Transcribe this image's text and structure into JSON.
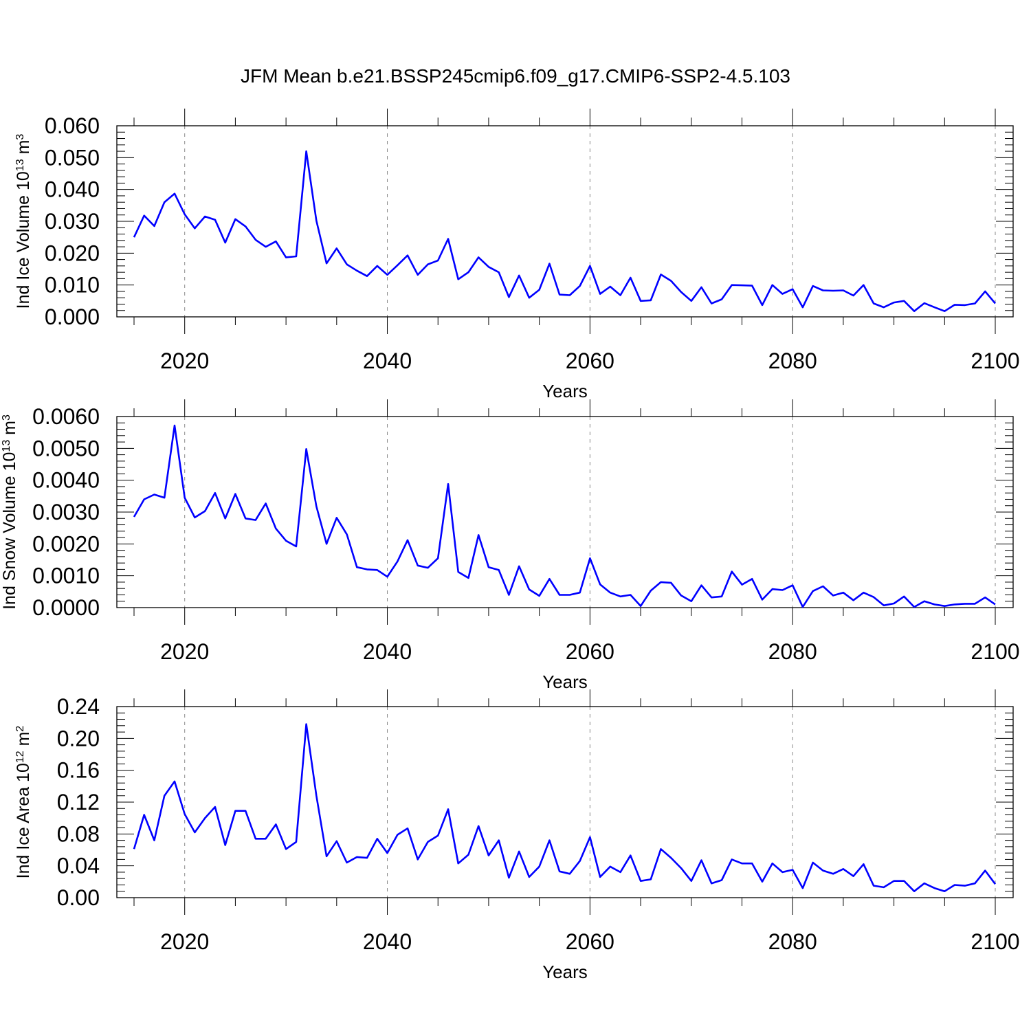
{
  "figure": {
    "title": "JFM Mean b.e21.BSSP245cmip6.f09_g17.CMIP6-SSP2-4.5.103",
    "line_color": "#0000ff"
  },
  "chart_data": [
    {
      "type": "line",
      "xlabel": "Years",
      "ylabel": {
        "base": "Ind Ice Volume 10",
        "exp": "13",
        "unit": " m",
        "unit_exp": "3"
      },
      "xlim": [
        2015,
        2100
      ],
      "ylim": [
        0,
        0.06
      ],
      "x_ticks": [
        "2020",
        "2040",
        "2060",
        "2080",
        "2100"
      ],
      "y_ticks": [
        "0.000",
        "0.010",
        "0.020",
        "0.030",
        "0.040",
        "0.050",
        "0.060"
      ],
      "grid": "dashed vertical at major x ticks",
      "x_start": 2015,
      "series": [
        {
          "name": "Ind Ice Volume",
          "values": [
            0.025,
            0.0318,
            0.0285,
            0.036,
            0.0387,
            0.0322,
            0.0278,
            0.0315,
            0.0305,
            0.0233,
            0.0307,
            0.0284,
            0.0242,
            0.022,
            0.0237,
            0.0187,
            0.019,
            0.052,
            0.0302,
            0.0168,
            0.0215,
            0.0165,
            0.0145,
            0.0128,
            0.016,
            0.0132,
            0.0162,
            0.0193,
            0.0132,
            0.0165,
            0.0177,
            0.0245,
            0.0118,
            0.014,
            0.0187,
            0.0157,
            0.014,
            0.0062,
            0.013,
            0.006,
            0.0085,
            0.0167,
            0.007,
            0.0068,
            0.0097,
            0.016,
            0.0072,
            0.0095,
            0.0068,
            0.0123,
            0.005,
            0.0052,
            0.0133,
            0.0113,
            0.0078,
            0.005,
            0.0093,
            0.0042,
            0.0055,
            0.01,
            0.0099,
            0.0098,
            0.0037,
            0.01,
            0.0072,
            0.0087,
            0.003,
            0.0097,
            0.0083,
            0.0082,
            0.0083,
            0.0067,
            0.01,
            0.0042,
            0.003,
            0.0045,
            0.005,
            0.0018,
            0.0043,
            0.003,
            0.0018,
            0.0038,
            0.0037,
            0.0042,
            0.008,
            0.0042
          ]
        }
      ]
    },
    {
      "type": "line",
      "xlabel": "Years",
      "ylabel": {
        "base": "Ind Snow Volume 10",
        "exp": "13",
        "unit": " m",
        "unit_exp": "3"
      },
      "xlim": [
        2015,
        2100
      ],
      "ylim": [
        0,
        0.006
      ],
      "x_ticks": [
        "2020",
        "2040",
        "2060",
        "2080",
        "2100"
      ],
      "y_ticks": [
        "0.0000",
        "0.0010",
        "0.0020",
        "0.0030",
        "0.0040",
        "0.0050",
        "0.0060"
      ],
      "grid": "dashed vertical at major x ticks",
      "x_start": 2015,
      "series": [
        {
          "name": "Ind Snow Volume",
          "values": [
            0.00285,
            0.0034,
            0.00355,
            0.00345,
            0.00572,
            0.00345,
            0.00283,
            0.00303,
            0.0036,
            0.0028,
            0.00357,
            0.0028,
            0.00275,
            0.00327,
            0.00248,
            0.0021,
            0.00192,
            0.00498,
            0.00318,
            0.002,
            0.00282,
            0.0023,
            0.00127,
            0.0012,
            0.00118,
            0.00097,
            0.00145,
            0.00212,
            0.00132,
            0.00125,
            0.00155,
            0.00388,
            0.00112,
            0.00093,
            0.00228,
            0.00127,
            0.00118,
            0.0004,
            0.0013,
            0.00057,
            0.00037,
            0.0009,
            0.0004,
            0.0004,
            0.00047,
            0.00155,
            0.00073,
            0.00047,
            0.00035,
            0.0004,
            5e-05,
            0.00053,
            0.0008,
            0.00078,
            0.00038,
            0.0002,
            0.0007,
            0.00032,
            0.00035,
            0.00113,
            0.00072,
            0.0009,
            0.00025,
            0.00058,
            0.00055,
            0.0007,
            2e-05,
            0.00052,
            0.00067,
            0.00038,
            0.00047,
            0.00023,
            0.00047,
            0.00033,
            7e-05,
            0.00013,
            0.00035,
            2e-05,
            0.0002,
            0.0001,
            5e-05,
            0.0001,
            0.00012,
            0.00012,
            0.00032,
            0.0001
          ]
        }
      ]
    },
    {
      "type": "line",
      "xlabel": "Years",
      "ylabel": {
        "base": "Ind Ice Area 10",
        "exp": "12",
        "unit": " m",
        "unit_exp": "2"
      },
      "xlim": [
        2015,
        2100
      ],
      "ylim": [
        0,
        0.24
      ],
      "x_ticks": [
        "2020",
        "2040",
        "2060",
        "2080",
        "2100"
      ],
      "y_ticks": [
        "0.00",
        "0.04",
        "0.08",
        "0.12",
        "0.16",
        "0.20",
        "0.24"
      ],
      "grid": "dashed vertical at major x ticks",
      "x_start": 2015,
      "series": [
        {
          "name": "Ind Ice Area",
          "values": [
            0.061,
            0.104,
            0.072,
            0.128,
            0.146,
            0.105,
            0.082,
            0.1,
            0.114,
            0.066,
            0.109,
            0.109,
            0.074,
            0.074,
            0.092,
            0.061,
            0.07,
            0.218,
            0.128,
            0.052,
            0.071,
            0.044,
            0.051,
            0.05,
            0.074,
            0.056,
            0.079,
            0.087,
            0.048,
            0.07,
            0.078,
            0.111,
            0.043,
            0.054,
            0.09,
            0.053,
            0.072,
            0.025,
            0.058,
            0.026,
            0.039,
            0.072,
            0.033,
            0.03,
            0.046,
            0.076,
            0.026,
            0.039,
            0.032,
            0.053,
            0.021,
            0.023,
            0.061,
            0.05,
            0.037,
            0.021,
            0.047,
            0.018,
            0.022,
            0.048,
            0.043,
            0.043,
            0.02,
            0.043,
            0.032,
            0.035,
            0.012,
            0.044,
            0.034,
            0.03,
            0.036,
            0.027,
            0.042,
            0.015,
            0.013,
            0.021,
            0.021,
            0.008,
            0.018,
            0.012,
            0.008,
            0.016,
            0.015,
            0.018,
            0.034,
            0.017
          ]
        }
      ]
    }
  ]
}
